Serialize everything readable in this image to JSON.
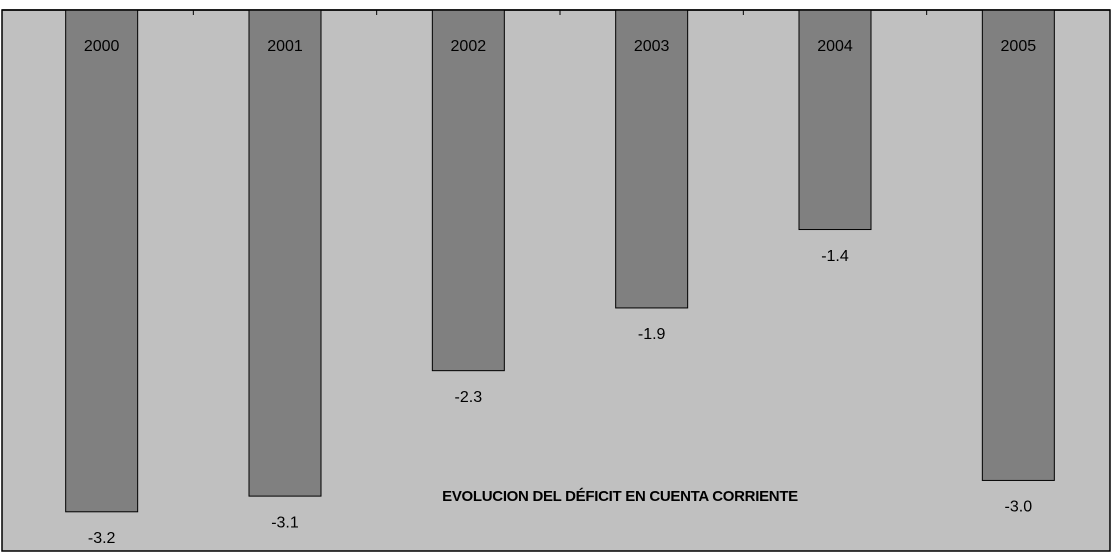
{
  "chart_data": {
    "type": "bar",
    "title": "EVOLUCION DEL DÉFICIT EN CUENTA CORRIENTE",
    "categories": [
      "2000",
      "2001",
      "2002",
      "2003",
      "2004",
      "2005"
    ],
    "values": [
      -3.2,
      -3.1,
      -2.3,
      -1.9,
      -1.4,
      -3.0
    ],
    "value_labels": [
      "-3.2",
      "-3.1",
      "-2.3",
      "-1.9",
      "-1.4",
      "-3.0"
    ],
    "color": "#808080",
    "ylim": [
      -3.45,
      0
    ]
  }
}
